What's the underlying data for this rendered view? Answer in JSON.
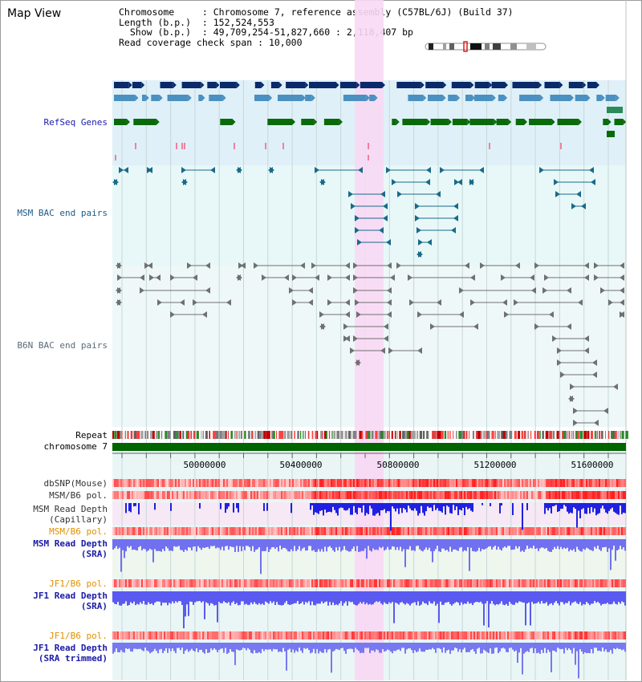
{
  "title": "Map View",
  "header": {
    "chromosome_key": "Chromosome",
    "chromosome_value": "Chromosome 7, reference assembly (C57BL/6J) (Build 37)",
    "length_key": "Length (b.p.)",
    "length_value": "152,524,553",
    "show_key": "Show (b.p.)",
    "show_value": "49,709,254-51,827,660 : 2,118,407 bp",
    "span_key": "Read coverage check span",
    "span_value": "10,000"
  },
  "tracks": {
    "refseq": "RefSeq Genes",
    "msm_bac": "MSM BAC end pairs",
    "b6n_bac": "B6N BAC end pairs",
    "repeat": "Repeat",
    "chromosome": "chromosome 7",
    "dbsnp": "dbSNP(Mouse)",
    "msm_b6_pol_1": "MSM/B6 pol.",
    "msm_depth_cap_1": "MSM Read Depth",
    "msm_depth_cap_2": "(Capillary)",
    "msm_b6_pol_2": "MSM/B6 pol.",
    "msm_depth_sra_1": "MSM Read Depth",
    "msm_depth_sra_2": "(SRA)",
    "jf1_b6_pol_1": "JF1/B6 pol.",
    "jf1_depth_sra_1": "JF1 Read Depth",
    "jf1_depth_sra_2": "(SRA)",
    "jf1_b6_pol_2": "JF1/B6 pol.",
    "jf1_depth_trim_1": "JF1 Read Depth",
    "jf1_depth_trim_2": "(SRA trimmed)"
  },
  "axis": {
    "ticks": [
      "50000000",
      "50400000",
      "50800000",
      "51200000",
      "51600000"
    ]
  },
  "colors": {
    "refseq_label": "#1a1aa8",
    "bac_label": "#1a5a8a",
    "b6n_label": "#5a6a7a",
    "orange_label": "#e09000",
    "blue_label": "#1a1aa8",
    "highlight": "#f8d8f4",
    "gene_dark": "#0a2a6a",
    "gene_mid": "#4a90c0",
    "gene_green": "#0a6a0a",
    "chrom_bar": "#006400"
  }
}
